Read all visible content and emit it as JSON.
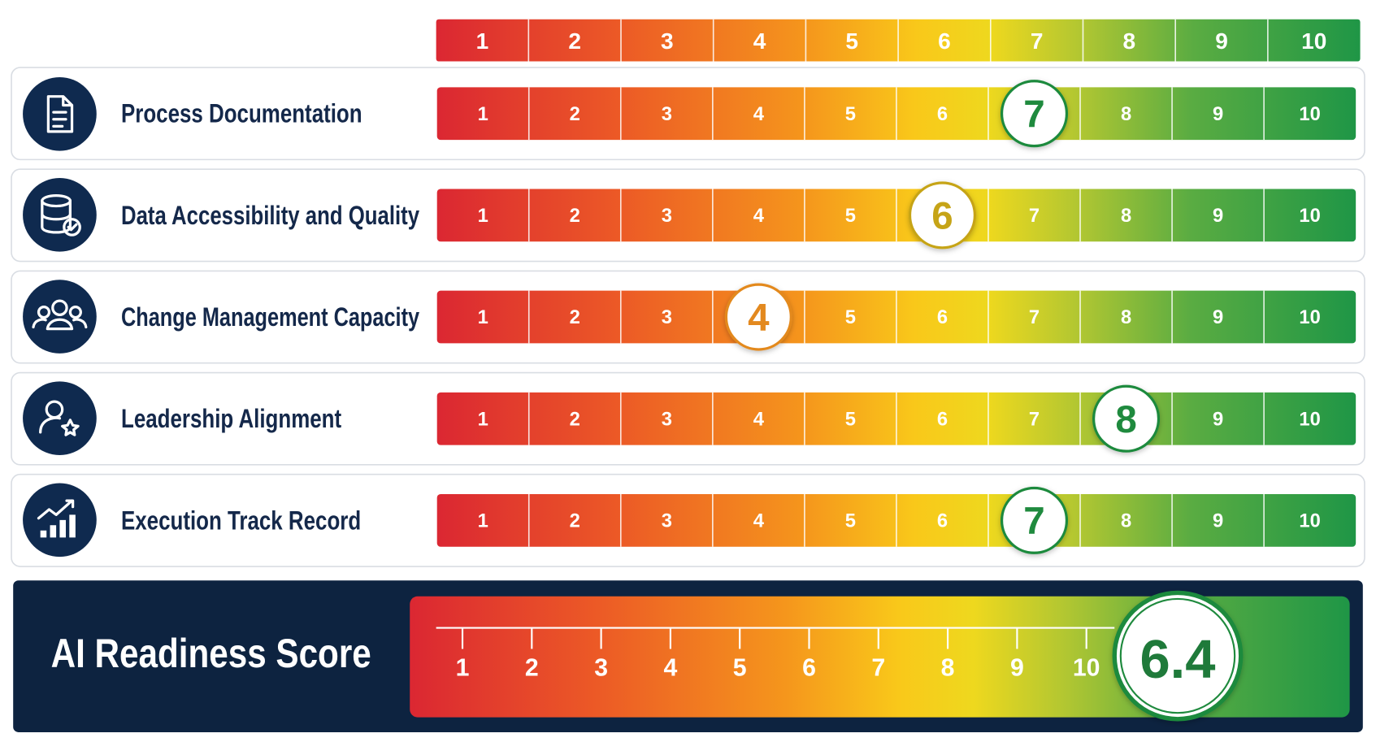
{
  "scale": [
    1,
    2,
    3,
    4,
    5,
    6,
    7,
    8,
    9,
    10
  ],
  "rows": [
    {
      "label": "Process Documentation",
      "score": 7
    },
    {
      "label": "Data Accessibility and Quality",
      "score": 6
    },
    {
      "label": "Change Management Capacity",
      "score": 4
    },
    {
      "label": "Leadership Alignment",
      "score": 8
    },
    {
      "label": "Execution Track Record",
      "score": 7
    }
  ],
  "summary": {
    "label": "AI Readiness Score",
    "score": 6.4
  }
}
